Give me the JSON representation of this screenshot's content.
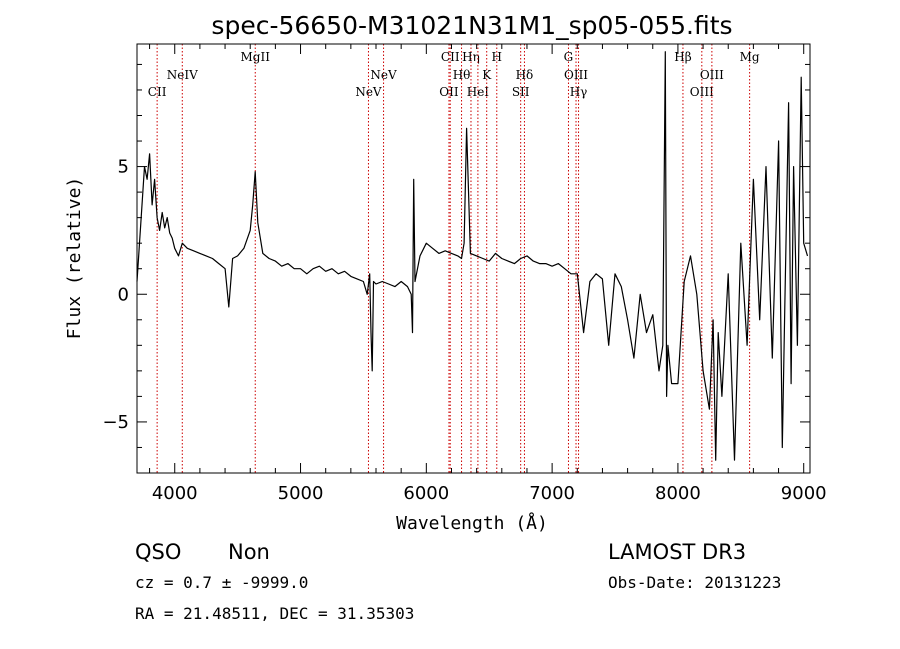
{
  "chart_data": {
    "type": "line",
    "title": "spec-56650-M31021N31M1_sp05-055.fits",
    "xlabel": "Wavelength (Å)",
    "ylabel": "Flux (relative)",
    "xlim": [
      3700,
      9050
    ],
    "ylim": [
      -7,
      9.8
    ],
    "xticks": [
      4000,
      5000,
      6000,
      7000,
      8000,
      9000
    ],
    "yticks": [
      -5,
      0,
      5
    ],
    "series": [
      {
        "x": [
          3700,
          3720,
          3740,
          3760,
          3780,
          3800,
          3820,
          3840,
          3860,
          3880,
          3900,
          3920,
          3940,
          3960,
          3980,
          4000,
          4030,
          4060,
          4100,
          4150,
          4200,
          4250,
          4300,
          4350,
          4400,
          4430,
          4460,
          4500,
          4550,
          4600,
          4620,
          4640,
          4660,
          4700,
          4750,
          4800,
          4850,
          4900,
          4950,
          5000,
          5050,
          5100,
          5150,
          5200,
          5250,
          5300,
          5350,
          5400,
          5450,
          5500,
          5530,
          5550,
          5560,
          5570,
          5580,
          5600,
          5650,
          5700,
          5750,
          5800,
          5850,
          5880,
          5890,
          5900,
          5910,
          5950,
          6000,
          6050,
          6100,
          6150,
          6200,
          6250,
          6280,
          6300,
          6320,
          6350,
          6400,
          6450,
          6500,
          6550,
          6600,
          6650,
          6700,
          6750,
          6800,
          6850,
          6900,
          6950,
          7000,
          7050,
          7100,
          7150,
          7200,
          7250,
          7300,
          7350,
          7400,
          7450,
          7500,
          7550,
          7600,
          7650,
          7700,
          7750,
          7800,
          7850,
          7880,
          7900,
          7910,
          7920,
          7950,
          8000,
          8050,
          8100,
          8150,
          8200,
          8250,
          8280,
          8300,
          8320,
          8350,
          8400,
          8450,
          8500,
          8550,
          8600,
          8650,
          8700,
          8750,
          8800,
          8830,
          8850,
          8880,
          8900,
          8920,
          8950,
          8980,
          9000,
          9030
        ],
        "y": [
          0.5,
          2.0,
          3.5,
          5.0,
          4.5,
          5.5,
          3.5,
          4.5,
          3.0,
          2.5,
          3.2,
          2.6,
          3.0,
          2.4,
          2.2,
          1.8,
          1.5,
          2.0,
          1.8,
          1.7,
          1.6,
          1.5,
          1.4,
          1.2,
          1.0,
          -0.5,
          1.4,
          1.5,
          1.8,
          2.5,
          3.5,
          4.8,
          2.8,
          1.6,
          1.4,
          1.3,
          1.1,
          1.2,
          1.0,
          1.0,
          0.8,
          1.0,
          1.1,
          0.9,
          1.0,
          0.8,
          0.9,
          0.7,
          0.6,
          0.5,
          0.0,
          0.8,
          -1.5,
          -3.0,
          0.5,
          0.4,
          0.5,
          0.4,
          0.3,
          0.5,
          0.3,
          0.0,
          -1.5,
          4.5,
          0.5,
          1.5,
          2.0,
          1.8,
          1.6,
          1.7,
          1.6,
          1.5,
          1.4,
          2.0,
          6.5,
          1.6,
          1.5,
          1.4,
          1.3,
          1.6,
          1.4,
          1.3,
          1.2,
          1.4,
          1.5,
          1.3,
          1.2,
          1.2,
          1.1,
          1.2,
          1.0,
          0.8,
          0.8,
          -1.5,
          0.5,
          0.8,
          0.6,
          -2.0,
          0.8,
          0.3,
          -1.0,
          -2.5,
          0.0,
          -1.5,
          -0.8,
          -3.0,
          -2.0,
          9.5,
          -4.0,
          -2.0,
          -3.5,
          -3.5,
          0.5,
          1.5,
          0.0,
          -3.0,
          -4.5,
          -1.0,
          -6.5,
          -1.5,
          -4.0,
          0.8,
          -6.5,
          2.0,
          -2.0,
          4.5,
          -1.0,
          5.0,
          -2.5,
          6.0,
          -6.0,
          -0.5,
          7.5,
          -3.5,
          5.0,
          -2.0,
          8.5,
          2.0,
          1.5
        ]
      }
    ],
    "lines": [
      {
        "name": "CII",
        "wl": 3860,
        "row": 3
      },
      {
        "name": "NeIV",
        "wl": 4060,
        "row": 2
      },
      {
        "name": "MgII",
        "wl": 4640,
        "row": 1
      },
      {
        "name": "NeV",
        "wl": 5540,
        "row": 3
      },
      {
        "name": "NeV",
        "wl": 5660,
        "row": 2
      },
      {
        "name": "OII",
        "wl": 6180,
        "row": 3
      },
      {
        "name": "CII",
        "wl": 6190,
        "row": 1
      },
      {
        "name": "Hθ",
        "wl": 6280,
        "row": 2
      },
      {
        "name": "Hη",
        "wl": 6355,
        "row": 1
      },
      {
        "name": "HeI",
        "wl": 6410,
        "row": 3
      },
      {
        "name": "K",
        "wl": 6480,
        "row": 2
      },
      {
        "name": "H",
        "wl": 6560,
        "row": 1
      },
      {
        "name": "SII",
        "wl": 6750,
        "row": 3
      },
      {
        "name": "Hδ",
        "wl": 6780,
        "row": 2
      },
      {
        "name": "G",
        "wl": 7130,
        "row": 1
      },
      {
        "name": "OIII",
        "wl": 7190,
        "row": 2
      },
      {
        "name": "Hγ",
        "wl": 7210,
        "row": 3
      },
      {
        "name": "Hβ",
        "wl": 8040,
        "row": 1
      },
      {
        "name": "OIII",
        "wl": 8190,
        "row": 3
      },
      {
        "name": "OIII",
        "wl": 8270,
        "row": 2
      },
      {
        "name": "Mg",
        "wl": 8570,
        "row": 1
      }
    ]
  },
  "footer": {
    "class_label": "QSO",
    "subclass_label": "Non",
    "survey": "LAMOST DR3",
    "cz": "cz = 0.7 ± -9999.0",
    "obs_date": "Obs-Date: 20131223",
    "coords": "RA =  21.48511, DEC =  31.35303"
  }
}
